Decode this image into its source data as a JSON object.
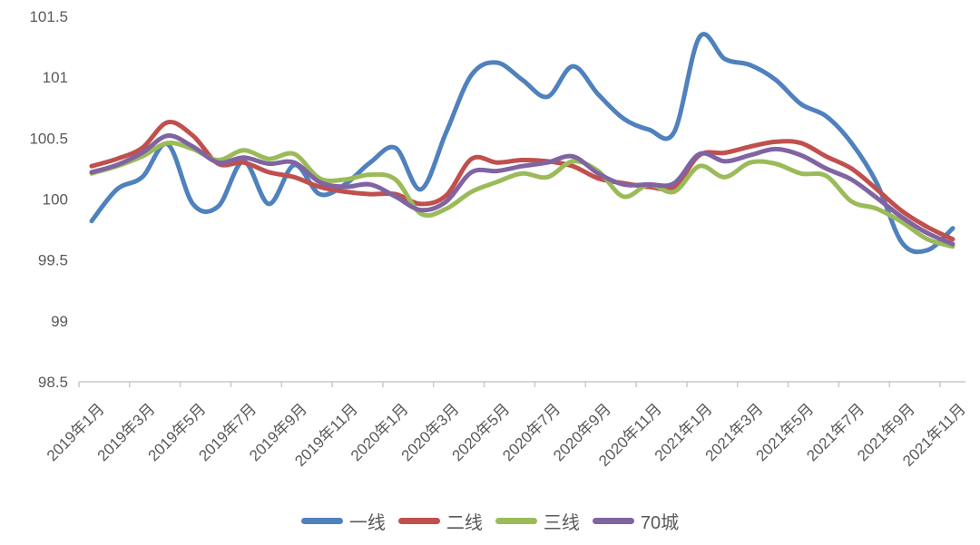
{
  "chart_data": {
    "type": "line",
    "title": "",
    "grid": false,
    "legend_position": "bottom",
    "smoothed": true,
    "axis_color": "#c9c9c9",
    "label_color": "#595959",
    "ylim": [
      98.5,
      101.5
    ],
    "y_ticks": [
      101.5,
      101,
      100.5,
      100,
      99.5,
      99,
      98.5
    ],
    "x_tick_labels": [
      "2019年1月",
      "2019年3月",
      "2019年5月",
      "2019年7月",
      "2019年9月",
      "2019年11月",
      "2020年1月",
      "2020年3月",
      "2020年5月",
      "2020年7月",
      "2020年9月",
      "2020年11月",
      "2021年1月",
      "2021年3月",
      "2021年5月",
      "2021年7月",
      "2021年9月",
      "2021年11月"
    ],
    "categories": [
      "2019年1月",
      "2019年2月",
      "2019年3月",
      "2019年4月",
      "2019年5月",
      "2019年6月",
      "2019年7月",
      "2019年8月",
      "2019年9月",
      "2019年10月",
      "2019年11月",
      "2019年12月",
      "2020年1月",
      "2020年2月",
      "2020年3月",
      "2020年4月",
      "2020年5月",
      "2020年6月",
      "2020年7月",
      "2020年8月",
      "2020年9月",
      "2020年10月",
      "2020年11月",
      "2020年12月",
      "2021年1月",
      "2021年2月",
      "2021年3月",
      "2021年4月",
      "2021年5月",
      "2021年6月",
      "2021年7月",
      "2021年8月",
      "2021年9月",
      "2021年10月",
      "2021年11月"
    ],
    "series": [
      {
        "id": "first-tier",
        "name": "一线",
        "color": "#4F81BD",
        "values": [
          99.82,
          100.08,
          100.18,
          100.45,
          99.96,
          99.94,
          100.31,
          99.96,
          100.28,
          100.04,
          100.12,
          100.3,
          100.42,
          100.08,
          100.55,
          101.02,
          101.12,
          100.98,
          100.84,
          101.09,
          100.86,
          100.66,
          100.57,
          100.55,
          101.33,
          101.15,
          101.1,
          100.98,
          100.78,
          100.68,
          100.46,
          100.13,
          99.64,
          99.58,
          99.76
        ]
      },
      {
        "id": "second-tier",
        "name": "二线",
        "color": "#C0504D",
        "values": [
          100.27,
          100.33,
          100.42,
          100.63,
          100.52,
          100.29,
          100.3,
          100.22,
          100.18,
          100.1,
          100.06,
          100.04,
          100.04,
          99.96,
          100.03,
          100.33,
          100.3,
          100.32,
          100.31,
          100.27,
          100.17,
          100.13,
          100.1,
          100.1,
          100.36,
          100.38,
          100.43,
          100.47,
          100.46,
          100.35,
          100.25,
          100.08,
          99.9,
          99.77,
          99.67
        ]
      },
      {
        "id": "third-tier",
        "name": "三线",
        "color": "#9BBB59",
        "values": [
          100.21,
          100.27,
          100.35,
          100.46,
          100.41,
          100.32,
          100.4,
          100.33,
          100.37,
          100.17,
          100.16,
          100.2,
          100.16,
          99.88,
          99.92,
          100.06,
          100.14,
          100.21,
          100.18,
          100.31,
          100.23,
          100.02,
          100.12,
          100.06,
          100.27,
          100.18,
          100.3,
          100.29,
          100.21,
          100.19,
          99.98,
          99.92,
          99.81,
          99.67,
          99.61
        ]
      },
      {
        "id": "cities-70",
        "name": "70城",
        "color": "#8064A2",
        "values": [
          100.22,
          100.28,
          100.38,
          100.52,
          100.43,
          100.3,
          100.34,
          100.29,
          100.3,
          100.14,
          100.1,
          100.12,
          100.02,
          99.91,
          99.98,
          100.22,
          100.23,
          100.27,
          100.3,
          100.35,
          100.21,
          100.12,
          100.12,
          100.13,
          100.37,
          100.31,
          100.36,
          100.41,
          100.36,
          100.25,
          100.16,
          100.01,
          99.85,
          99.72,
          99.63
        ]
      }
    ]
  }
}
